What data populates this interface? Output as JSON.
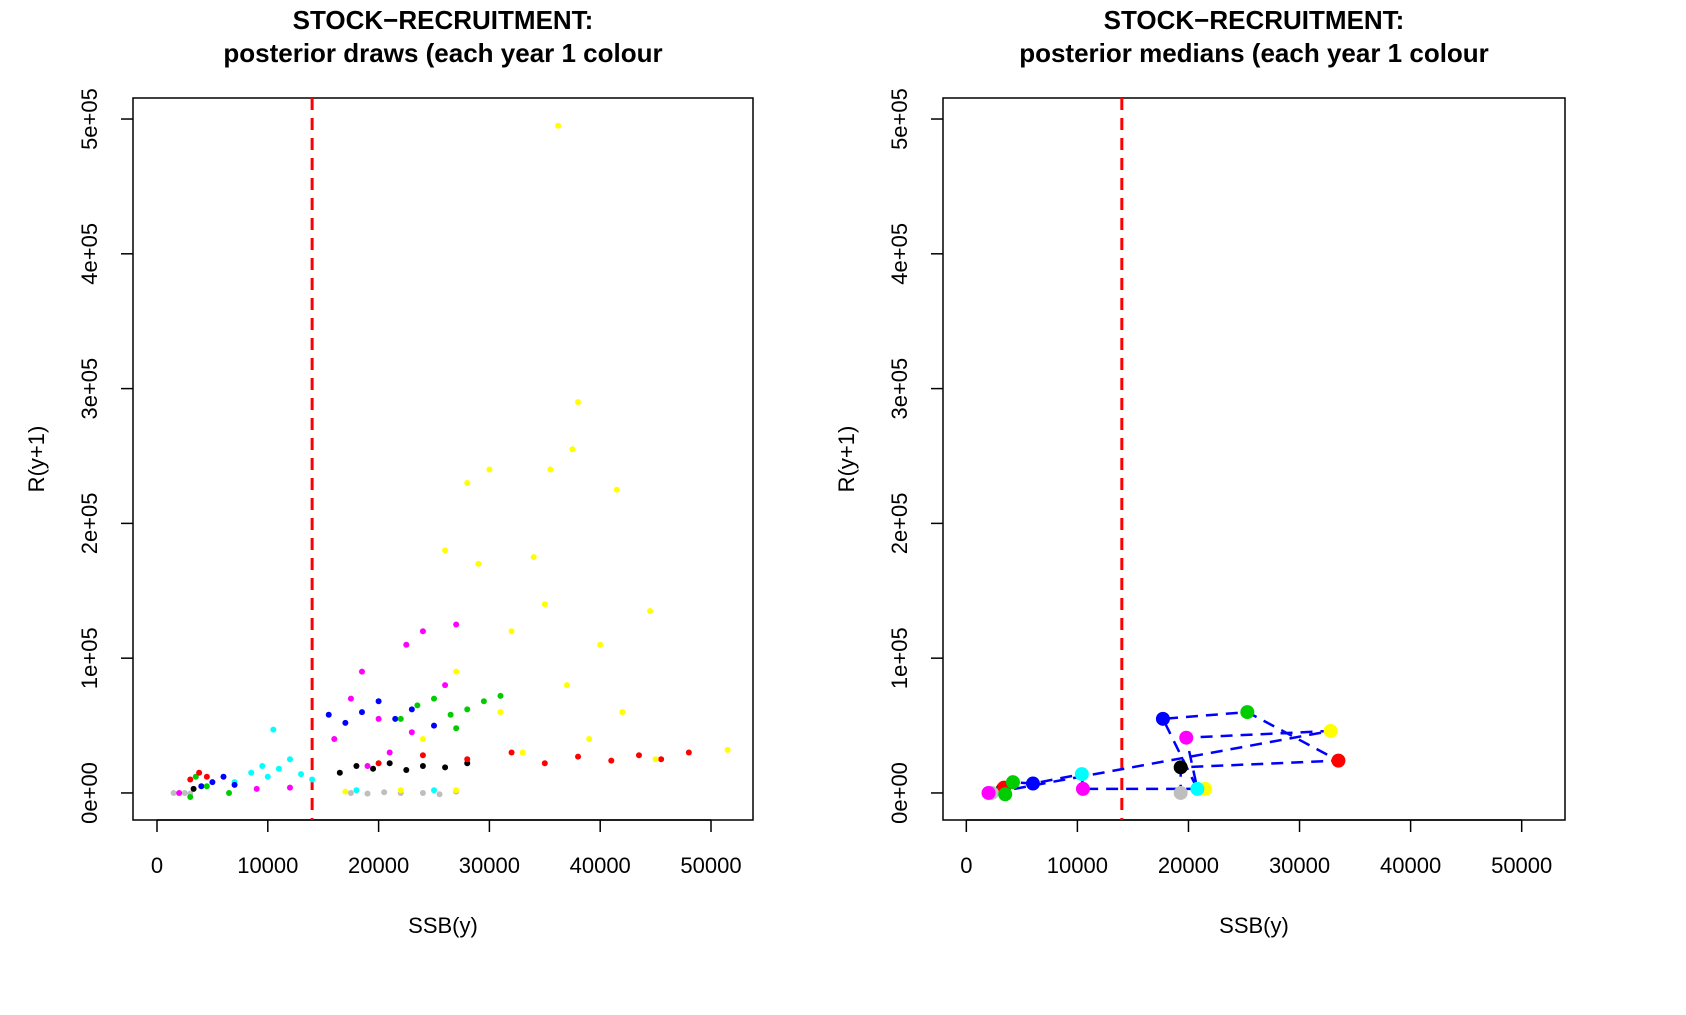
{
  "chart_data": [
    {
      "type": "scatter",
      "title": "STOCK−RECRUITMENT:",
      "subtitle": "posterior draws (each year 1 colour",
      "xlabel": "SSB(y)",
      "ylabel": "R(y+1)",
      "xlim": [
        -2166,
        53790
      ],
      "ylim": [
        -20060,
        515600
      ],
      "xticks": [
        0,
        10000,
        20000,
        30000,
        40000,
        50000
      ],
      "yticks": [
        {
          "value": 0,
          "label": "0e+00"
        },
        {
          "value": 100000,
          "label": "1e+05"
        },
        {
          "value": 200000,
          "label": "2e+05"
        },
        {
          "value": 300000,
          "label": "3e+05"
        },
        {
          "value": 400000,
          "label": "4e+05"
        },
        {
          "value": 500000,
          "label": "5e+05"
        }
      ],
      "vline": 14000,
      "vline_color": "red",
      "series": [
        {
          "color": "#bebebe",
          "x": [
            1500,
            2500,
            3000,
            17500,
            19000,
            20500,
            22000,
            24000,
            25500,
            27000
          ],
          "values": [
            0,
            0,
            -500,
            0,
            -500,
            500,
            0,
            0,
            -1000,
            1000
          ]
        },
        {
          "color": "cyan",
          "x": [
            7000,
            8500,
            9500,
            10000,
            11000,
            12000,
            13000,
            10500,
            14000,
            18000,
            25000
          ],
          "values": [
            8000,
            15000,
            20000,
            12000,
            18000,
            25000,
            14000,
            47000,
            10000,
            2000,
            2000
          ]
        },
        {
          "color": "magenta",
          "x": [
            2000,
            9000,
            12000,
            16000,
            17500,
            18500,
            20000,
            21000,
            22500,
            24000,
            26000,
            27000,
            19000,
            23000
          ],
          "values": [
            0,
            3000,
            4000,
            40000,
            70000,
            90000,
            55000,
            30000,
            110000,
            120000,
            80000,
            125000,
            20000,
            45000
          ]
        },
        {
          "color": "blue",
          "x": [
            4000,
            5000,
            6000,
            7000,
            15500,
            17000,
            18500,
            20000,
            21500,
            23000,
            25000
          ],
          "values": [
            5000,
            8000,
            12000,
            6000,
            58000,
            52000,
            60000,
            68000,
            55000,
            62000,
            50000
          ]
        },
        {
          "color": "#00cd00",
          "x": [
            3000,
            3500,
            4500,
            6500,
            22000,
            23500,
            25000,
            26500,
            28000,
            29500,
            31000,
            27000
          ],
          "values": [
            -3000,
            12000,
            5000,
            0,
            55000,
            65000,
            70000,
            58000,
            62000,
            68000,
            72000,
            48000
          ]
        },
        {
          "color": "black",
          "x": [
            3300,
            16500,
            18000,
            19500,
            21000,
            22500,
            24000,
            26000,
            28000
          ],
          "values": [
            3000,
            15000,
            20000,
            18000,
            22000,
            17000,
            20000,
            19000,
            22000
          ]
        },
        {
          "color": "red",
          "x": [
            3000,
            3800,
            4500,
            20000,
            24000,
            28000,
            32000,
            35000,
            38000,
            41000,
            43500,
            45500,
            48000
          ],
          "values": [
            10000,
            15000,
            12000,
            22000,
            28000,
            25000,
            30000,
            22000,
            27000,
            24000,
            28000,
            25000,
            30000
          ]
        },
        {
          "color": "yellow",
          "x": [
            17000,
            22000,
            27000,
            24000,
            27000,
            28000,
            29000,
            30000,
            31000,
            32000,
            33000,
            34000,
            35000,
            35500,
            36200,
            37000,
            37500,
            38000,
            39000,
            40000,
            41500,
            42000,
            44500,
            45000,
            51500,
            26000
          ],
          "values": [
            1000,
            2000,
            2000,
            40000,
            90000,
            230000,
            170000,
            240000,
            60000,
            120000,
            30000,
            175000,
            140000,
            240000,
            495000,
            80000,
            255000,
            290000,
            40000,
            110000,
            225000,
            60000,
            135000,
            25000,
            32000,
            180000
          ]
        }
      ]
    },
    {
      "type": "connected-scatter",
      "title": "STOCK−RECRUITMENT:",
      "subtitle": "posterior medians (each year 1 colour",
      "xlabel": "SSB(y)",
      "ylabel": "R(y+1)",
      "xlim": [
        -2100,
        53900
      ],
      "ylim": [
        -20060,
        515600
      ],
      "xticks": [
        0,
        10000,
        20000,
        30000,
        40000,
        50000
      ],
      "yticks": [
        {
          "value": 0,
          "label": "0e+00"
        },
        {
          "value": 100000,
          "label": "1e+05"
        },
        {
          "value": 200000,
          "label": "2e+05"
        },
        {
          "value": 300000,
          "label": "3e+05"
        },
        {
          "value": 400000,
          "label": "4e+05"
        },
        {
          "value": 500000,
          "label": "5e+05"
        }
      ],
      "vline": 14000,
      "vline_color": "red",
      "line_color": "blue",
      "x": [
        3300,
        3400,
        4200,
        6000,
        10400,
        10500,
        21500,
        19300,
        19300,
        33500,
        25300,
        17700,
        20800,
        19800,
        32800,
        2300,
        2000,
        3500
      ],
      "values": [
        3000,
        4000,
        8000,
        7000,
        14000,
        3000,
        3000,
        0,
        19000,
        24000,
        60000,
        55000,
        3000,
        41000,
        46000,
        0,
        0,
        -1000
      ],
      "colors": [
        "black",
        "red",
        "#00cd00",
        "blue",
        "cyan",
        "magenta",
        "yellow",
        "#bebebe",
        "black",
        "red",
        "#00cd00",
        "blue",
        "cyan",
        "magenta",
        "yellow",
        "#bebebe",
        "magenta",
        "#00cd00"
      ]
    }
  ]
}
